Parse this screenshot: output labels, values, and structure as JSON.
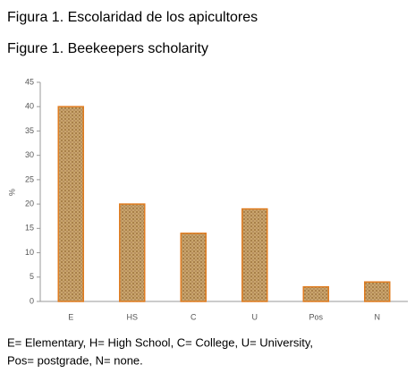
{
  "chart_data": {
    "type": "bar",
    "title": "Figura 1. Escolaridad de los apicultores",
    "subtitle": "Figure 1. Beekeepers scholarity",
    "y_label": "%",
    "categories": [
      "E",
      "HS",
      "C",
      "U",
      "Pos",
      "N"
    ],
    "values": [
      40,
      20,
      14,
      19,
      3,
      4
    ],
    "color": "#c9a56c",
    "edge_color": "#e07d22",
    "ylim": [
      0,
      45
    ],
    "yticks": [
      0,
      5,
      10,
      15,
      20,
      25,
      30,
      35,
      40,
      45
    ],
    "grid": false,
    "caption": [
      "E= Elementary, H= High School, C= College, U= University,",
      "Pos= postgrade, N= none."
    ]
  }
}
